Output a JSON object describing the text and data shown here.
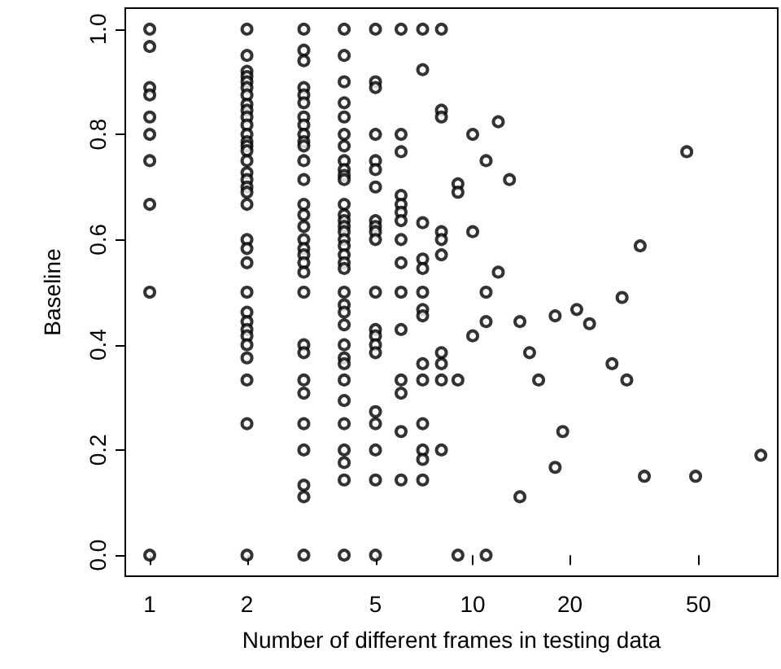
{
  "chart_data": {
    "type": "scatter",
    "xlabel": "Number of different frames in testing data",
    "ylabel": "Baseline",
    "log": "x",
    "grid": false,
    "marker": "circle",
    "xlim": [
      0.84,
      88
    ],
    "xticks": [
      1,
      2,
      5,
      10,
      20,
      50
    ],
    "ylim": [
      -0.04,
      1.04
    ],
    "yticks": [
      {
        "value": 0,
        "label": "0.0"
      },
      0.2,
      0.4,
      0.6,
      0.8,
      {
        "value": 1,
        "label": "1.0"
      }
    ],
    "series": [
      {
        "color": "#000000",
        "x": [
          1,
          1,
          1,
          1,
          1,
          1,
          1,
          1,
          1,
          1,
          2,
          2,
          2,
          2,
          2,
          2,
          2,
          2,
          2,
          2,
          2,
          2,
          2,
          2,
          2,
          2,
          2,
          2,
          2,
          2,
          2,
          2,
          2,
          2,
          2,
          2,
          2,
          2,
          2,
          2,
          2,
          2,
          2,
          2,
          3,
          3,
          3,
          3,
          3,
          3,
          3,
          3,
          3,
          3,
          3,
          3,
          3,
          3,
          3,
          3,
          3,
          3,
          3,
          3,
          3,
          3,
          3,
          3,
          3,
          3,
          3,
          3,
          3,
          3,
          3,
          4,
          4,
          4,
          4,
          4,
          4,
          4,
          4,
          4,
          4,
          4,
          4,
          4,
          4,
          4,
          4,
          4,
          4,
          4,
          4,
          4,
          4,
          4,
          4,
          4,
          4,
          4,
          4,
          4,
          4,
          4,
          4,
          4,
          4,
          4,
          5,
          5,
          5,
          5,
          5,
          5,
          5,
          5,
          5,
          5,
          5,
          5,
          5,
          5,
          5,
          5,
          5,
          5,
          5,
          5,
          5,
          6,
          6,
          6,
          6,
          6,
          6,
          6,
          6,
          6,
          6,
          6,
          6,
          6,
          6,
          6,
          7,
          7,
          7,
          7,
          7,
          7,
          7,
          7,
          7,
          7,
          7,
          7,
          7,
          7,
          8,
          8,
          8,
          8,
          8,
          8,
          8,
          8,
          8,
          8,
          9,
          9,
          9,
          9,
          10,
          10,
          10,
          11,
          11,
          11,
          11,
          12,
          12,
          13,
          14,
          14,
          15,
          16,
          18,
          18,
          19,
          21,
          23,
          27,
          29,
          30,
          33,
          34,
          46,
          49,
          78
        ],
        "values": [
          1,
          0.967,
          0.889,
          0.875,
          0.833,
          0.8,
          0.75,
          0.667,
          0.5,
          0,
          1,
          0.95,
          0.92,
          0.91,
          0.9,
          0.889,
          0.875,
          0.857,
          0.846,
          0.833,
          0.818,
          0.8,
          0.786,
          0.778,
          0.769,
          0.75,
          0.727,
          0.714,
          0.7,
          0.69,
          0.667,
          0.6,
          0.583,
          0.556,
          0.5,
          0.462,
          0.444,
          0.429,
          0.417,
          0.4,
          0.375,
          0.333,
          0.25,
          0,
          1,
          0.96,
          0.94,
          0.889,
          0.875,
          0.86,
          0.833,
          0.818,
          0.8,
          0.786,
          0.778,
          0.75,
          0.714,
          0.667,
          0.647,
          0.625,
          0.6,
          0.583,
          0.571,
          0.556,
          0.538,
          0.5,
          0.4,
          0.385,
          0.333,
          0.308,
          0.25,
          0.2,
          0.133,
          0.111,
          0,
          1,
          0.95,
          0.9,
          0.86,
          0.833,
          0.8,
          0.778,
          0.75,
          0.733,
          0.722,
          0.714,
          0.667,
          0.647,
          0.636,
          0.625,
          0.615,
          0.6,
          0.588,
          0.571,
          0.556,
          0.545,
          0.5,
          0.476,
          0.462,
          0.438,
          0.4,
          0.375,
          0.364,
          0.333,
          0.294,
          0.25,
          0.2,
          0.176,
          0.143,
          0,
          1,
          0.9,
          0.889,
          0.8,
          0.75,
          0.733,
          0.7,
          0.636,
          0.625,
          0.615,
          0.6,
          0.5,
          0.429,
          0.417,
          0.4,
          0.385,
          0.273,
          0.25,
          0.2,
          0.143,
          0,
          1,
          0.8,
          0.767,
          0.684,
          0.667,
          0.652,
          0.636,
          0.6,
          0.556,
          0.5,
          0.429,
          0.333,
          0.308,
          0.235,
          0.143,
          1,
          0.923,
          0.632,
          0.563,
          0.545,
          0.5,
          0.467,
          0.455,
          0.364,
          0.333,
          0.25,
          0.2,
          0.182,
          0.143,
          1,
          0.846,
          0.833,
          0.615,
          0.6,
          0.571,
          0.385,
          0.364,
          0.333,
          0.2,
          0.706,
          0.69,
          0.333,
          0,
          0.8,
          0.615,
          0.417,
          0.75,
          0.5,
          0.444,
          0,
          0.824,
          0.538,
          0.714,
          0.444,
          0.111,
          0.385,
          0.333,
          0.455,
          0.167,
          0.235,
          0.467,
          0.44,
          0.364,
          0.49,
          0.333,
          0.588,
          0.15,
          0.767,
          0.15,
          0.19
        ]
      }
    ]
  }
}
